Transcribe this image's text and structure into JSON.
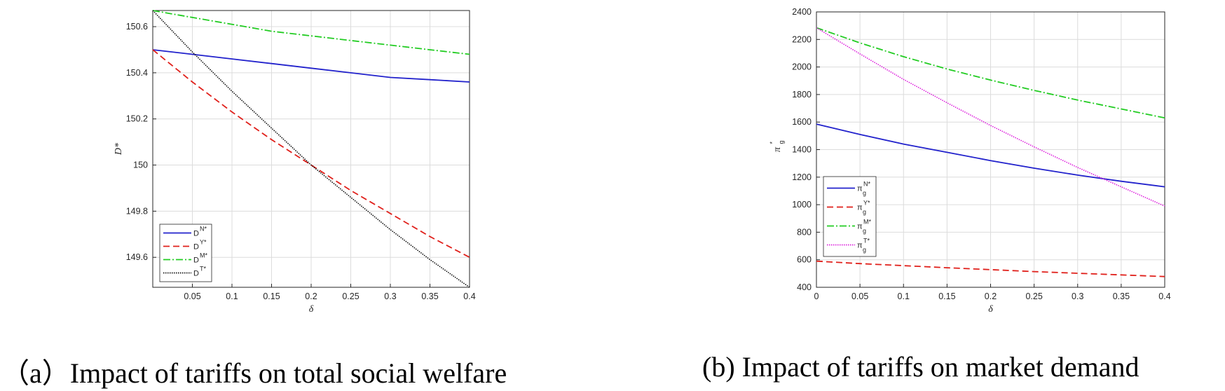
{
  "chart_data": [
    {
      "type": "line",
      "caption": "（a）Impact of tariffs on total social welfare",
      "xlabel": "δ",
      "ylabel": "D*",
      "xlim": [
        0,
        0.4
      ],
      "ylim": [
        149.47,
        150.67
      ],
      "xticks": [
        "0.05",
        "0.1",
        "0.15",
        "0.2",
        "0.25",
        "0.3",
        "0.35",
        "0.4"
      ],
      "yticks": [
        "149.6",
        "149.8",
        "150",
        "150.2",
        "150.4",
        "150.6"
      ],
      "grid": true,
      "legend_position": "bottom-left",
      "series": [
        {
          "name": "D",
          "sup": "N*",
          "color": "#2222cc",
          "dash": "solid",
          "x": [
            0,
            0.05,
            0.1,
            0.15,
            0.2,
            0.25,
            0.3,
            0.35,
            0.4
          ],
          "y": [
            150.5,
            150.48,
            150.46,
            150.44,
            150.42,
            150.4,
            150.38,
            150.37,
            150.36
          ]
        },
        {
          "name": "D",
          "sup": "Y*",
          "color": "#e0201b",
          "dash": "dashed",
          "x": [
            0,
            0.05,
            0.1,
            0.15,
            0.2,
            0.25,
            0.3,
            0.35,
            0.4
          ],
          "y": [
            150.5,
            150.36,
            150.23,
            150.11,
            150.0,
            149.89,
            149.79,
            149.69,
            149.6
          ]
        },
        {
          "name": "D",
          "sup": "M*",
          "color": "#22cc22",
          "dash": "dashdot",
          "x": [
            0,
            0.05,
            0.1,
            0.15,
            0.2,
            0.25,
            0.3,
            0.35,
            0.4
          ],
          "y": [
            150.67,
            150.64,
            150.61,
            150.58,
            150.56,
            150.54,
            150.52,
            150.5,
            150.48
          ]
        },
        {
          "name": "D",
          "sup": "T*",
          "color": "#111111",
          "dash": "dotted",
          "x": [
            0,
            0.05,
            0.1,
            0.15,
            0.2,
            0.25,
            0.3,
            0.35,
            0.4
          ],
          "y": [
            150.67,
            150.49,
            150.32,
            150.16,
            150.0,
            149.86,
            149.72,
            149.59,
            149.47
          ]
        }
      ]
    },
    {
      "type": "line",
      "caption": "(b) Impact of tariffs on market demand",
      "xlabel": "δ",
      "ylabel": "π",
      "ylabel_sub": "g",
      "ylabel_sup": "*",
      "xlim": [
        0,
        0.4
      ],
      "ylim": [
        400,
        2400
      ],
      "xticks": [
        "0",
        "0.05",
        "0.1",
        "0.15",
        "0.2",
        "0.25",
        "0.3",
        "0.35",
        "0.4"
      ],
      "yticks": [
        "400",
        "600",
        "800",
        "1000",
        "1200",
        "1400",
        "1600",
        "1800",
        "2000",
        "2200",
        "2400"
      ],
      "grid": true,
      "legend_position": "middle-left",
      "series": [
        {
          "name": "π",
          "sub": "g",
          "sup": "N*",
          "color": "#2222cc",
          "dash": "solid",
          "x": [
            0,
            0.05,
            0.1,
            0.15,
            0.2,
            0.25,
            0.3,
            0.35,
            0.4
          ],
          "y": [
            1585,
            1510,
            1440,
            1380,
            1320,
            1265,
            1215,
            1170,
            1130
          ]
        },
        {
          "name": "π",
          "sub": "g",
          "sup": "Y*",
          "color": "#e0201b",
          "dash": "dashed",
          "x": [
            0,
            0.05,
            0.1,
            0.15,
            0.2,
            0.25,
            0.3,
            0.35,
            0.4
          ],
          "y": [
            590,
            572,
            557,
            542,
            528,
            514,
            502,
            490,
            478
          ]
        },
        {
          "name": "π",
          "sub": "g",
          "sup": "M*",
          "color": "#22cc22",
          "dash": "dashdot",
          "x": [
            0,
            0.05,
            0.1,
            0.15,
            0.2,
            0.25,
            0.3,
            0.35,
            0.4
          ],
          "y": [
            2285,
            2175,
            2075,
            1985,
            1905,
            1830,
            1760,
            1695,
            1630
          ]
        },
        {
          "name": "π",
          "sub": "g",
          "sup": "T*",
          "color": "#dd22dd",
          "dash": "dotted",
          "x": [
            0,
            0.05,
            0.1,
            0.15,
            0.2,
            0.25,
            0.3,
            0.35,
            0.4
          ],
          "y": [
            2285,
            2095,
            1910,
            1740,
            1575,
            1420,
            1270,
            1130,
            990
          ]
        }
      ]
    }
  ]
}
